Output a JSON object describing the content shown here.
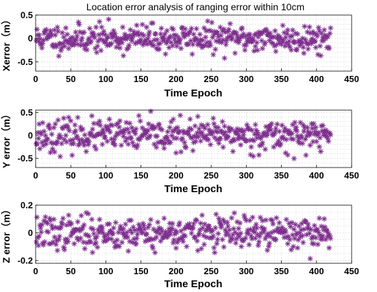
{
  "marker_color": "#7e2f8e",
  "chart_data": [
    {
      "type": "scatter",
      "title": "Location error analysis of ranging error within 10cm",
      "xlabel": "Time Epoch",
      "ylabel": "Xerror（m）",
      "marker": "asterisk",
      "xlim": [
        0,
        450
      ],
      "ylim": [
        -0.7,
        0.5
      ],
      "xticks": [
        "0",
        "50",
        "100",
        "150",
        "200",
        "250",
        "300",
        "350",
        "400",
        "450"
      ],
      "yticks": [
        "0.5",
        "0",
        "-0.5"
      ],
      "grid": true,
      "n_points": 420,
      "point_spread": 0.15,
      "point_min": -0.68,
      "point_max": 0.49,
      "seed": 11
    },
    {
      "type": "scatter",
      "title": "",
      "xlabel": "Time Epoch",
      "ylabel": "Y error（m）",
      "marker": "asterisk",
      "xlim": [
        0,
        450
      ],
      "ylim": [
        -0.7,
        0.55
      ],
      "xticks": [
        "0",
        "50",
        "100",
        "150",
        "200",
        "250",
        "300",
        "350",
        "400",
        "450"
      ],
      "yticks": [
        "0.5",
        "0",
        "-0.5"
      ],
      "grid": true,
      "n_points": 420,
      "point_spread": 0.17,
      "point_min": -0.67,
      "point_max": 0.54,
      "seed": 23
    },
    {
      "type": "scatter",
      "title": "",
      "xlabel": "Time Epoch",
      "ylabel": "Z error（m）",
      "marker": "asterisk",
      "xlim": [
        0,
        450
      ],
      "ylim": [
        -0.22,
        0.2
      ],
      "xticks": [
        "0",
        "50",
        "100",
        "150",
        "200",
        "250",
        "300",
        "350",
        "400",
        "450"
      ],
      "yticks": [
        "0.2",
        "0",
        "-0.2"
      ],
      "grid": true,
      "n_points": 420,
      "point_spread": 0.06,
      "point_min": -0.22,
      "point_max": 0.17,
      "seed": 37
    }
  ]
}
